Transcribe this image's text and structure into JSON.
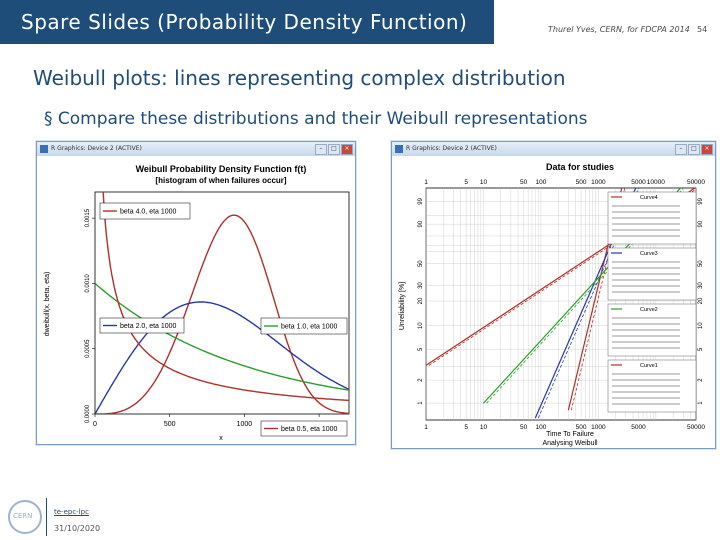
{
  "slide": {
    "title": "Spare Slides (Probability Density Function)",
    "credit": "Thurel Yves, CERN, for FDCPA 2014",
    "number": "54",
    "subtitle": "Weibull plots: lines representing complex distribution",
    "bullet": "§ Compare these distributions and their Weibull representations",
    "footer_link": "te-epc-lpc",
    "footer_date": "31/10/2020",
    "logo_text": "CERN"
  },
  "left_window": {
    "title": "R Graphics: Device 2 (ACTIVE)",
    "plot_title": "Weibull Probability Density Function f(t)",
    "plot_subtitle": "[histogram of when failures occur]",
    "ylabel": "dweibull(x, beta, eta)",
    "xlabel": "x",
    "x_ticks": [
      "0",
      "500",
      "1000",
      "1500"
    ],
    "y_ticks": [
      "0.0000",
      "0.0005",
      "0.0010",
      "0.0015"
    ],
    "legends": [
      "beta 4.0, eta 1000",
      "beta 2.0, eta 1000",
      "beta 1.0, eta 1000",
      "beta 0.5, eta 1000"
    ]
  },
  "right_window": {
    "title": "R Graphics: Device 2 (ACTIVE)",
    "plot_title": "Data for studies",
    "ylabel": "Unreliability [%]",
    "xlabel": "Time To Failure",
    "xlabel2": "Analysing Weibull",
    "x_ticks_top": [
      "1",
      "5",
      "10",
      "50",
      "100",
      "500",
      "1000",
      "5000",
      "10000",
      "50000"
    ],
    "x_ticks_bottom": [
      "1",
      "5",
      "10",
      "50",
      "100",
      "500",
      "1000",
      "5000",
      "50000"
    ],
    "y_ticks": [
      "99",
      "90",
      "50",
      "30",
      "20",
      "10",
      "5",
      "2",
      "1"
    ],
    "legend_curves": [
      "Curve4",
      "Curve3",
      "Curve2",
      "Curve1"
    ]
  },
  "chart_data": [
    {
      "type": "line",
      "title": "Weibull Probability Density Function f(t)",
      "subtitle": "[histogram of when failures occur]",
      "xlabel": "x",
      "ylabel": "dweibull(x, beta, eta)",
      "xlim": [
        0,
        1700
      ],
      "ylim": [
        0,
        0.0017
      ],
      "series": [
        {
          "name": "beta 4.0, eta 1000",
          "beta": 4.0,
          "eta": 1000,
          "color": "#b0302a"
        },
        {
          "name": "beta 2.0, eta 1000",
          "beta": 2.0,
          "eta": 1000,
          "color": "#2838a8"
        },
        {
          "name": "beta 1.0, eta 1000",
          "beta": 1.0,
          "eta": 1000,
          "color": "#2aa02a"
        },
        {
          "name": "beta 0.5, eta 1000",
          "beta": 0.5,
          "eta": 1000,
          "color": "#b0302a"
        }
      ]
    },
    {
      "type": "line",
      "title": "Data for studies",
      "xlabel": "Time To Failure",
      "ylabel": "Unreliability [%]",
      "x_scale": "log",
      "y_scale": "weibull",
      "xlim": [
        1,
        50000
      ],
      "series": [
        {
          "name": "Curve4",
          "beta": 4.0,
          "eta": 1000,
          "color": "#b0302a"
        },
        {
          "name": "Curve3",
          "beta": 2.0,
          "eta": 1000,
          "color": "#2838a8"
        },
        {
          "name": "Curve2",
          "beta": 1.0,
          "eta": 1000,
          "color": "#2aa02a"
        },
        {
          "name": "Curve1",
          "beta": 0.5,
          "eta": 1000,
          "color": "#b0302a"
        }
      ]
    }
  ]
}
